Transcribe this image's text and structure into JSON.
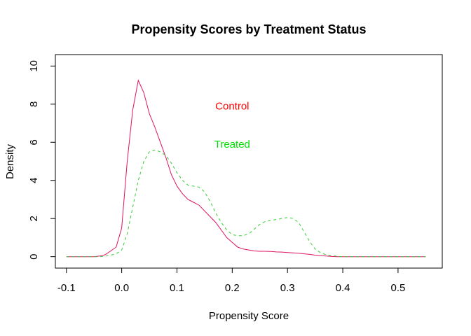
{
  "chart_data": {
    "type": "line",
    "title": "Propensity Scores by Treatment Status",
    "xlabel": "Propensity Score",
    "ylabel": "Density",
    "xlim": [
      -0.12,
      0.58
    ],
    "ylim": [
      -0.6,
      10.6
    ],
    "xticks": [
      -0.1,
      0.0,
      0.1,
      0.2,
      0.3,
      0.4,
      0.5
    ],
    "xtick_labels": [
      "-0.1",
      "0.0",
      "0.1",
      "0.2",
      "0.3",
      "0.4",
      "0.5"
    ],
    "yticks": [
      0,
      2,
      4,
      6,
      8,
      10
    ],
    "ytick_labels": [
      "0",
      "2",
      "4",
      "6",
      "8",
      "10"
    ],
    "grid": false,
    "series": [
      {
        "name": "Control",
        "color": "#E0115F",
        "dash": "solid",
        "x": [
          -0.1,
          -0.05,
          -0.04,
          -0.03,
          -0.02,
          -0.01,
          0.0,
          0.01,
          0.02,
          0.03,
          0.04,
          0.05,
          0.06,
          0.07,
          0.08,
          0.09,
          0.1,
          0.11,
          0.12,
          0.13,
          0.14,
          0.15,
          0.16,
          0.17,
          0.18,
          0.19,
          0.2,
          0.21,
          0.22,
          0.23,
          0.24,
          0.25,
          0.26,
          0.27,
          0.28,
          0.29,
          0.3,
          0.31,
          0.32,
          0.33,
          0.34,
          0.35,
          0.36,
          0.37,
          0.38,
          0.39,
          0.4,
          0.42,
          0.45,
          0.5,
          0.55
        ],
        "y": [
          0,
          0,
          0.03,
          0.1,
          0.3,
          0.5,
          1.5,
          5.0,
          7.7,
          9.25,
          8.6,
          7.5,
          6.8,
          6.0,
          5.2,
          4.3,
          3.7,
          3.3,
          3.0,
          2.85,
          2.7,
          2.4,
          2.1,
          1.8,
          1.4,
          1.0,
          0.75,
          0.5,
          0.4,
          0.35,
          0.3,
          0.28,
          0.28,
          0.27,
          0.25,
          0.24,
          0.22,
          0.2,
          0.18,
          0.15,
          0.12,
          0.08,
          0.05,
          0.03,
          0.01,
          0.0,
          0,
          0,
          0,
          0,
          0
        ]
      },
      {
        "name": "Treated",
        "color": "#33CC33",
        "dash": "4,4",
        "x": [
          -0.1,
          -0.04,
          -0.03,
          -0.02,
          -0.01,
          0.0,
          0.01,
          0.02,
          0.03,
          0.04,
          0.05,
          0.06,
          0.07,
          0.08,
          0.09,
          0.1,
          0.11,
          0.12,
          0.13,
          0.14,
          0.15,
          0.16,
          0.17,
          0.18,
          0.19,
          0.2,
          0.21,
          0.22,
          0.23,
          0.24,
          0.25,
          0.26,
          0.27,
          0.28,
          0.29,
          0.3,
          0.31,
          0.32,
          0.33,
          0.34,
          0.35,
          0.36,
          0.37,
          0.38,
          0.39,
          0.4,
          0.45,
          0.5,
          0.55
        ],
        "y": [
          0,
          0,
          0.02,
          0.08,
          0.15,
          0.35,
          1.2,
          2.6,
          4.0,
          5.0,
          5.5,
          5.6,
          5.5,
          5.3,
          4.9,
          4.4,
          4.0,
          3.75,
          3.7,
          3.65,
          3.4,
          2.9,
          2.3,
          1.8,
          1.4,
          1.15,
          1.1,
          1.1,
          1.2,
          1.45,
          1.7,
          1.85,
          1.9,
          1.95,
          2.0,
          2.05,
          2.0,
          1.8,
          1.3,
          0.8,
          0.4,
          0.2,
          0.1,
          0.05,
          0.02,
          0.0,
          0,
          0,
          0
        ]
      }
    ],
    "annotations": [
      {
        "text": "Control",
        "x": 0.2,
        "y": 7.9,
        "color": "#FF0000"
      },
      {
        "text": "Treated",
        "x": 0.2,
        "y": 5.9,
        "color": "#00E000"
      }
    ]
  }
}
